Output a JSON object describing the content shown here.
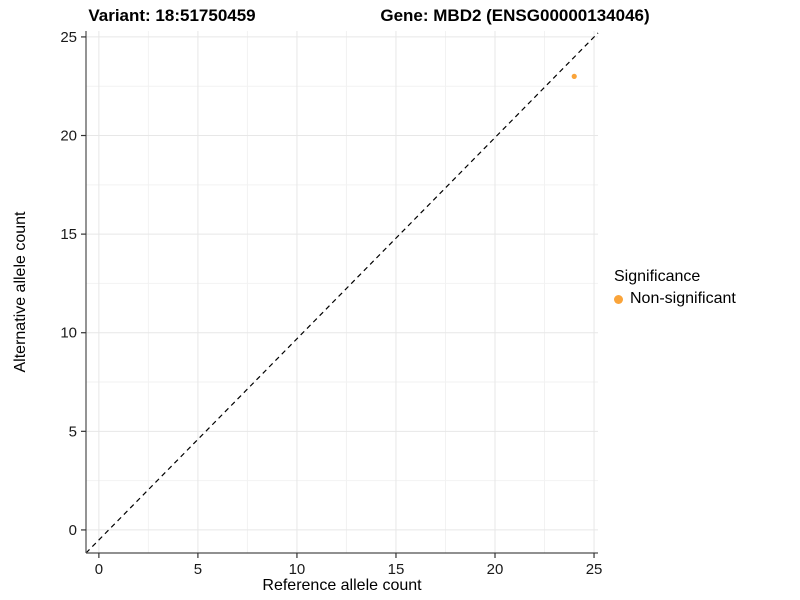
{
  "chart_data": {
    "type": "scatter",
    "title_left": "Variant: 18:51750459",
    "title_right": "Gene: MBD2 (ENSG00000134046)",
    "xlabel": "Reference allele count",
    "ylabel": "Alternative allele count",
    "xlim": [
      -0.65,
      25.2
    ],
    "ylim": [
      -1.17,
      25.3
    ],
    "xticks": [
      0,
      5,
      10,
      15,
      20,
      25
    ],
    "yticks": [
      0,
      5,
      10,
      15,
      20,
      25
    ],
    "grid": "major+minor",
    "diagonal": {
      "equation": "y = x",
      "style": "dashed",
      "color": "#000000"
    },
    "points": [
      {
        "x": 24,
        "y": 23,
        "series": "Non-significant",
        "color": "#FAA43A",
        "radius": 2.6
      }
    ],
    "legend": {
      "title": "Significance",
      "position": "right",
      "items": [
        {
          "label": "Non-significant",
          "color": "#FAA43A"
        }
      ]
    },
    "colors": {
      "background": "#ffffff",
      "grid_major": "#e7e7e7",
      "grid_minor": "#f2f2f2",
      "axis_line": "#4d4d4d",
      "tick_mark": "#333333",
      "tick_text": "#1a1a1a"
    }
  }
}
